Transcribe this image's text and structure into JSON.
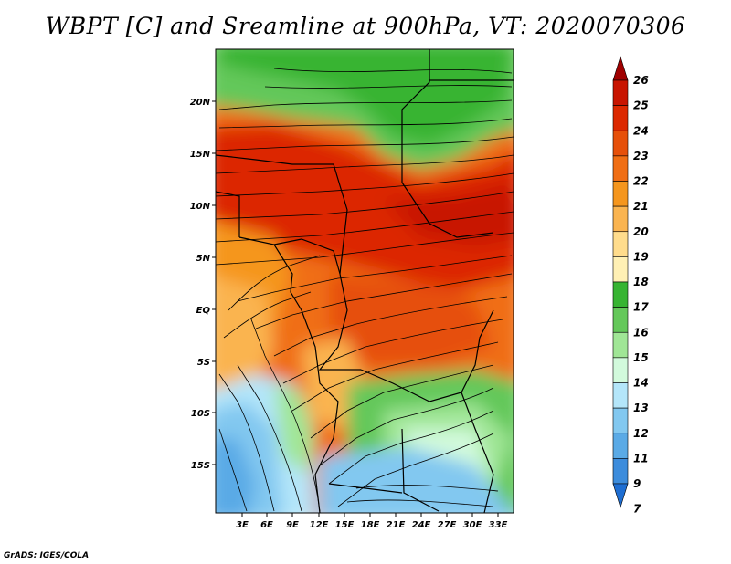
{
  "title": "WBPT [C] and Sreamline at 900hPa, VT: 2020070306",
  "credit": "GrADS: IGES/COLA",
  "map": {
    "lat_labels": [
      "20N",
      "15N",
      "10N",
      "5N",
      "EQ",
      "5S",
      "10S",
      "15S"
    ],
    "lon_labels": [
      "3E",
      "6E",
      "9E",
      "12E",
      "15E",
      "18E",
      "21E",
      "24E",
      "27E",
      "30E",
      "33E"
    ]
  },
  "colorbar": {
    "levels": [
      "26",
      "25",
      "24",
      "23",
      "22",
      "21",
      "20",
      "19",
      "18",
      "17",
      "16",
      "15",
      "14",
      "13",
      "12",
      "11",
      "9",
      "7"
    ],
    "colors": [
      "#a00000",
      "#c81400",
      "#dc2800",
      "#e6500a",
      "#f06e14",
      "#f5961e",
      "#fab450",
      "#ffdc8c",
      "#fff0b4",
      "#37b432",
      "#64c85a",
      "#a0e696",
      "#d2fadc",
      "#b4e6fa",
      "#82c8f0",
      "#5aaae6",
      "#3c8cdc",
      "#1e6ed2"
    ]
  }
}
